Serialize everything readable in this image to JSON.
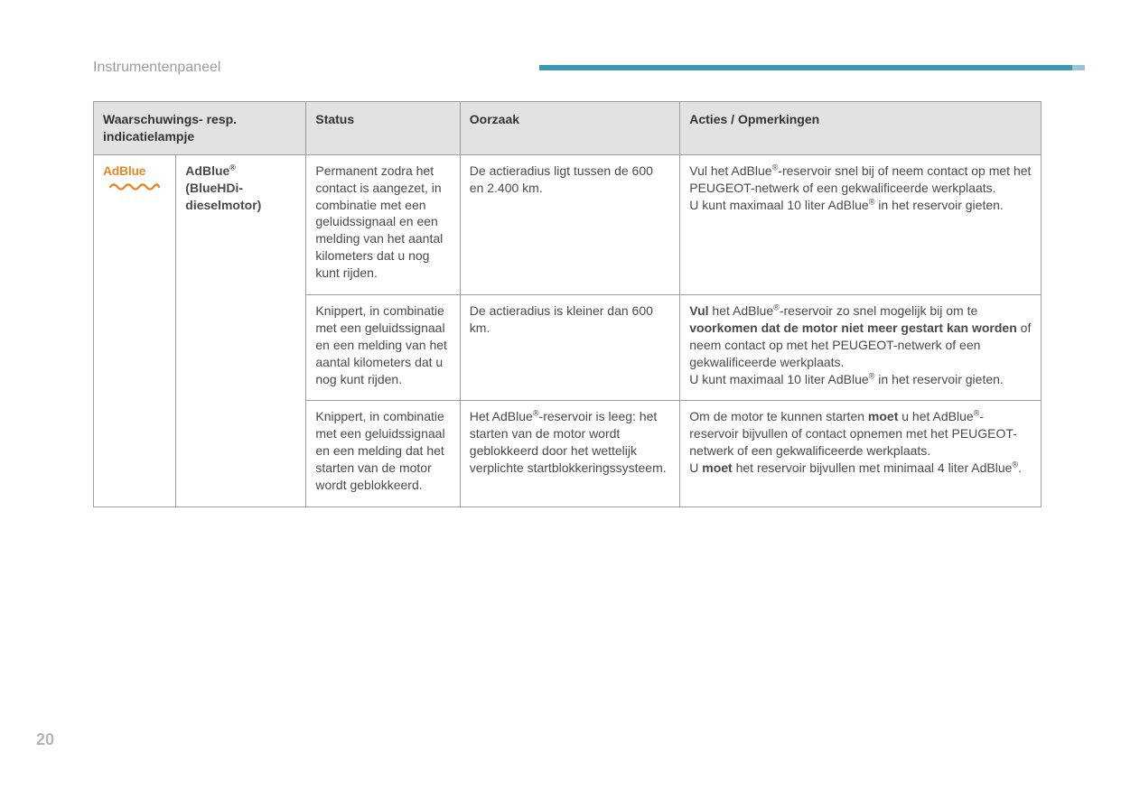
{
  "page": {
    "section_title": "Instrumentenpaneel",
    "page_number": "20",
    "accent_bar_color": "#3d96b4",
    "accent_bar_tip_color": "#97c6d6"
  },
  "table": {
    "headers": {
      "col12": "Waarschuwings- resp. indicatielampje",
      "col3": "Status",
      "col4": "Oorzaak",
      "col5": "Acties / Opmerkingen"
    },
    "icon": {
      "label": "AdBlue",
      "color": "#e08a2a",
      "wave_color": "#e08a2a"
    },
    "name": {
      "line1_a": "AdBlue",
      "line1_sup": "®",
      "line2": "(BlueHDi-",
      "line3": "dieselmotor)"
    },
    "rows": [
      {
        "status": "Permanent zodra het contact is aangezet, in combinatie met een geluidssignaal en een melding van het aantal kilometers dat u nog kunt rijden.",
        "cause": "De actieradius ligt tussen de 600 en 2.400 km.",
        "action_html": "Vul het AdBlue<span class=\"sup\">®</span>-reservoir snel bij of neem contact op met het PEUGEOT-netwerk of een gekwalificeerde werkplaats.<br>U kunt maximaal 10 liter AdBlue<span class=\"sup\">®</span> in het reservoir gieten."
      },
      {
        "status": "Knippert, in combinatie met een geluidssignaal en een melding van het aantal kilometers dat u nog kunt rijden.",
        "cause": "De actieradius is kleiner dan 600 km.",
        "action_html": "<span class=\"bold\">Vul</span> het AdBlue<span class=\"sup\">®</span>-reservoir zo snel mogelijk bij om te <span class=\"bold\">voorkomen dat de motor niet meer gestart kan worden</span> of neem contact op met het PEUGEOT-netwerk of een gekwalificeerde werkplaats.<br>U kunt maximaal 10 liter AdBlue<span class=\"sup\">®</span> in het reservoir gieten."
      },
      {
        "status": "Knippert, in combinatie met een geluidssignaal en een melding dat het starten van de motor wordt geblokkeerd.",
        "cause_html": "Het AdBlue<span class=\"sup\">®</span>-reservoir is leeg: het starten van de motor wordt geblokkeerd door het wettelijk verplichte startblokkeringssysteem.",
        "action_html": "Om de motor te kunnen starten <span class=\"bold\">moet</span> u het AdBlue<span class=\"sup\">®</span>-reservoir bijvullen of contact opnemen met het PEUGEOT-netwerk of een gekwalificeerde werkplaats.<br>U <span class=\"bold\">moet</span> het reservoir bijvullen met minimaal 4 liter AdBlue<span class=\"sup\">®</span>."
      }
    ]
  }
}
